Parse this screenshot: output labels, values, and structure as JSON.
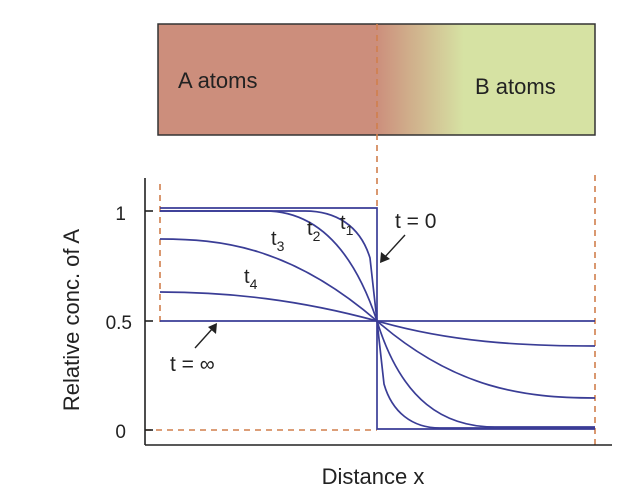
{
  "bar": {
    "left_label": "A atoms",
    "right_label": "B atoms",
    "colors": {
      "a": "#cc8e7c",
      "b": "#d6e2a3"
    }
  },
  "axes": {
    "ylabel": "Relative conc. of A",
    "xlabel": "Distance x",
    "yticks": [
      "1",
      "0.5",
      "0"
    ]
  },
  "curve_labels": {
    "t1": {
      "base": "t",
      "sub": "1"
    },
    "t2": {
      "base": "t",
      "sub": "2"
    },
    "t3": {
      "base": "t",
      "sub": "3"
    },
    "t4": {
      "base": "t",
      "sub": "4"
    },
    "t0": "t = 0",
    "tinf": "t = ∞"
  },
  "colors": {
    "curve": "#3a3d96",
    "dashed": "#d07f4c",
    "axis": "#222222"
  }
}
